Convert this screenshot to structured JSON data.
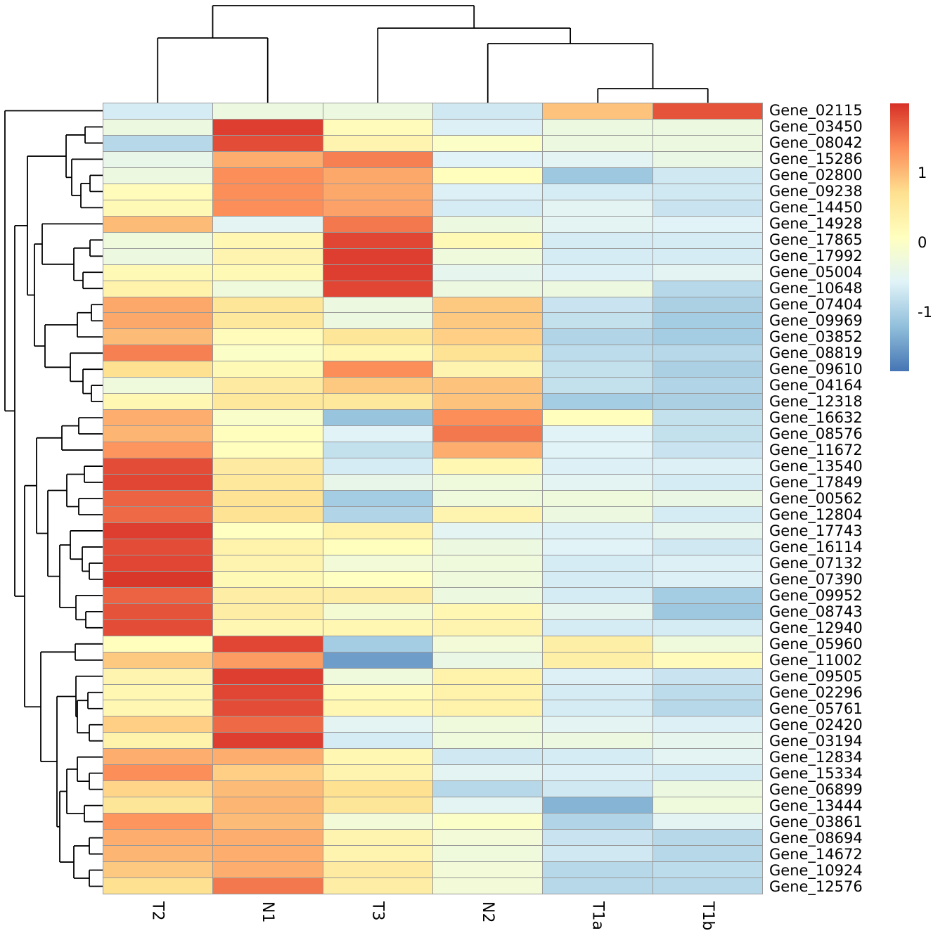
{
  "chart_data": {
    "type": "heatmap",
    "title": "",
    "columns": [
      "T2",
      "N1",
      "T3",
      "N2",
      "T1a",
      "T1b"
    ],
    "rows": [
      "Gene_02115",
      "Gene_03450",
      "Gene_08042",
      "Gene_15286",
      "Gene_02800",
      "Gene_09238",
      "Gene_14450",
      "Gene_14928",
      "Gene_17865",
      "Gene_17992",
      "Gene_05004",
      "Gene_10648",
      "Gene_07404",
      "Gene_09969",
      "Gene_03852",
      "Gene_08819",
      "Gene_09610",
      "Gene_04164",
      "Gene_12318",
      "Gene_16632",
      "Gene_08576",
      "Gene_11672",
      "Gene_13540",
      "Gene_17849",
      "Gene_00562",
      "Gene_12804",
      "Gene_17743",
      "Gene_16114",
      "Gene_07132",
      "Gene_07390",
      "Gene_09952",
      "Gene_08743",
      "Gene_12940",
      "Gene_05960",
      "Gene_11002",
      "Gene_09505",
      "Gene_02296",
      "Gene_05761",
      "Gene_02420",
      "Gene_03194",
      "Gene_12834",
      "Gene_15334",
      "Gene_06899",
      "Gene_13444",
      "Gene_03861",
      "Gene_08694",
      "Gene_14672",
      "Gene_10924",
      "Gene_12576"
    ],
    "values": [
      [
        -0.65,
        -0.3,
        -0.3,
        -0.7,
        0.95,
        1.75
      ],
      [
        -0.3,
        1.9,
        0.15,
        -0.6,
        -0.3,
        -0.3
      ],
      [
        -0.9,
        1.8,
        0.3,
        0.0,
        -0.3,
        -0.3
      ],
      [
        -0.4,
        1.1,
        1.45,
        -0.55,
        -0.5,
        -0.35
      ],
      [
        -0.3,
        1.35,
        1.15,
        0.1,
        -1.1,
        -0.7
      ],
      [
        0.15,
        1.35,
        1.15,
        -0.6,
        -0.65,
        -0.7
      ],
      [
        0.2,
        1.35,
        1.2,
        -0.65,
        -0.5,
        -0.75
      ],
      [
        1.0,
        -0.5,
        1.5,
        -0.3,
        -0.5,
        -0.55
      ],
      [
        -0.25,
        0.25,
        1.85,
        0.2,
        -0.65,
        -0.65
      ],
      [
        -0.3,
        0.3,
        1.9,
        -0.25,
        -0.65,
        -0.65
      ],
      [
        0.2,
        0.2,
        1.9,
        -0.45,
        -0.6,
        -0.5
      ],
      [
        0.35,
        -0.25,
        1.85,
        -0.3,
        -0.3,
        -0.9
      ],
      [
        1.15,
        0.6,
        -0.3,
        0.9,
        -0.75,
        -1.0
      ],
      [
        1.15,
        0.55,
        -0.3,
        0.9,
        -0.8,
        -1.05
      ],
      [
        1.0,
        0.15,
        0.6,
        0.85,
        -0.95,
        -1.05
      ],
      [
        1.45,
        0.0,
        0.25,
        0.65,
        -0.85,
        -0.9
      ],
      [
        0.7,
        0.2,
        1.35,
        0.3,
        -0.8,
        -1.0
      ],
      [
        -0.25,
        0.5,
        0.9,
        0.95,
        -0.8,
        -0.95
      ],
      [
        0.25,
        0.55,
        0.55,
        0.95,
        -1.05,
        -1.0
      ],
      [
        1.1,
        -0.05,
        -1.15,
        1.35,
        0.1,
        -0.8
      ],
      [
        1.05,
        0.1,
        -0.55,
        1.5,
        -0.55,
        -0.8
      ],
      [
        1.3,
        0.1,
        -0.8,
        1.1,
        -0.55,
        -0.75
      ],
      [
        1.8,
        0.5,
        -0.65,
        0.25,
        -0.6,
        -0.6
      ],
      [
        1.85,
        0.55,
        -0.4,
        -0.25,
        -0.5,
        -0.65
      ],
      [
        1.65,
        0.65,
        -1.05,
        -0.25,
        -0.25,
        -0.35
      ],
      [
        1.6,
        0.65,
        -0.95,
        0.3,
        -0.3,
        -0.65
      ],
      [
        1.9,
        0.05,
        0.35,
        -0.5,
        -0.6,
        -0.45
      ],
      [
        1.8,
        0.35,
        0.1,
        -0.3,
        -0.55,
        -0.7
      ],
      [
        1.85,
        0.3,
        -0.2,
        -0.25,
        -0.65,
        -0.6
      ],
      [
        1.95,
        0.2,
        0.05,
        -0.25,
        -0.65,
        -0.6
      ],
      [
        1.65,
        0.45,
        0.45,
        -0.3,
        -0.65,
        -1.05
      ],
      [
        1.75,
        0.45,
        -0.15,
        0.25,
        -0.45,
        -1.1
      ],
      [
        1.8,
        0.25,
        0.25,
        0.3,
        -0.65,
        -0.65
      ],
      [
        0.1,
        1.85,
        -1.05,
        -0.2,
        0.4,
        -0.25
      ],
      [
        0.9,
        1.25,
        -1.5,
        -0.35,
        0.4,
        0.15
      ],
      [
        0.3,
        1.9,
        -0.25,
        0.35,
        -0.6,
        -0.75
      ],
      [
        0.25,
        1.85,
        0.15,
        0.35,
        -0.65,
        -0.85
      ],
      [
        0.25,
        1.8,
        0.25,
        0.35,
        -0.65,
        -0.9
      ],
      [
        0.85,
        1.6,
        -0.5,
        -0.25,
        -0.5,
        -0.6
      ],
      [
        0.35,
        1.9,
        -0.65,
        -0.25,
        -0.3,
        -0.45
      ],
      [
        1.1,
        1.1,
        0.25,
        -0.7,
        -0.65,
        -0.5
      ],
      [
        1.35,
        0.85,
        0.3,
        -0.5,
        -0.6,
        -0.65
      ],
      [
        0.8,
        1.0,
        0.7,
        -0.9,
        -0.7,
        -0.3
      ],
      [
        0.6,
        1.05,
        0.6,
        -0.5,
        -1.3,
        -0.25
      ],
      [
        1.3,
        1.0,
        -0.2,
        0.0,
        -0.95,
        -0.5
      ],
      [
        1.1,
        1.1,
        0.3,
        -0.2,
        -0.75,
        -0.9
      ],
      [
        1.05,
        1.1,
        0.3,
        -0.25,
        -0.7,
        -0.9
      ],
      [
        0.9,
        1.1,
        0.5,
        -0.2,
        -0.9,
        -0.85
      ],
      [
        0.7,
        1.5,
        0.45,
        -0.2,
        -0.9,
        -0.9
      ]
    ],
    "vmin": -1.85,
    "vmax": 2.0,
    "palette_low_to_high": [
      "#4575b4",
      "#91bfdb",
      "#e0f3f8",
      "#ffffbf",
      "#fee090",
      "#fc8d59",
      "#d73027"
    ],
    "grid_color": "#999999",
    "dendrogram_color": "#000000",
    "legend": {
      "ticks": [
        {
          "label": "1",
          "value": 1
        },
        {
          "label": "0",
          "value": 0
        },
        {
          "label": "-1",
          "value": -1
        }
      ],
      "position": "right"
    },
    "row_dendrogram": [
      7,
      0,
      [
        21,
        [
          39,
          [
            94,
            [
              121,
              1,
              2
            ],
            [
              102,
              3,
              [
                115,
                [
                  128,
                  4,
                  5
                ],
                6
              ]
            ]
          ],
          [
            49,
            [
              60,
              7,
              [
                105,
                [
                  128,
                  8,
                  9
                ],
                [
                  118,
                  10,
                  11
                ]
              ]
            ],
            [
              64,
              [
                110,
                [
                  130,
                  12,
                  13
                ],
                14
              ],
              [
                100,
                15,
                [
                  118,
                  16,
                  [
                    130,
                    17,
                    18
                  ]
                ]
              ]
            ]
          ]
        ],
        [
          35,
          [
            52,
            [
              88,
              [
                112,
                19,
                20
              ],
              21
            ],
            [
              68,
              [
                95,
                [
                  120,
                  22,
                  23
                ],
                [
                  112,
                  24,
                  25
                ]
              ],
              [
                85,
                [
                  100,
                  26,
                  [
                    117,
                    27,
                    [
                      127,
                      28,
                      29
                    ]
                  ]
                ],
                [
                  108,
                  30,
                  [
                    122,
                    31,
                    32
                  ]
                ]
              ]
            ]
          ],
          [
            58,
            [
              107,
              33,
              34
            ],
            [
              81,
              [
                108,
                35,
                [
                  110,
                  [
                    125,
                    36,
                    37
                  ],
                  [
                    127,
                    38,
                    39
                  ]
                ]
              ],
              [
                85,
                [
                  95,
                  [
                    110,
                    40,
                    [
                      127,
                      41,
                      42
                    ]
                  ],
                  [
                    120,
                    43,
                    44
                  ]
                ],
                [
                  105,
                  [
                    127,
                    45,
                    46
                  ],
                  [
                    127,
                    47,
                    48
                  ]
                ]
              ]
            ]
          ]
        ]
      ]
    ],
    "col_dendrogram": [
      8,
      [
        54,
        0,
        1
      ],
      [
        40,
        2,
        [
          62,
          3,
          [
            126,
            4,
            5
          ]
        ]
      ]
    ]
  }
}
